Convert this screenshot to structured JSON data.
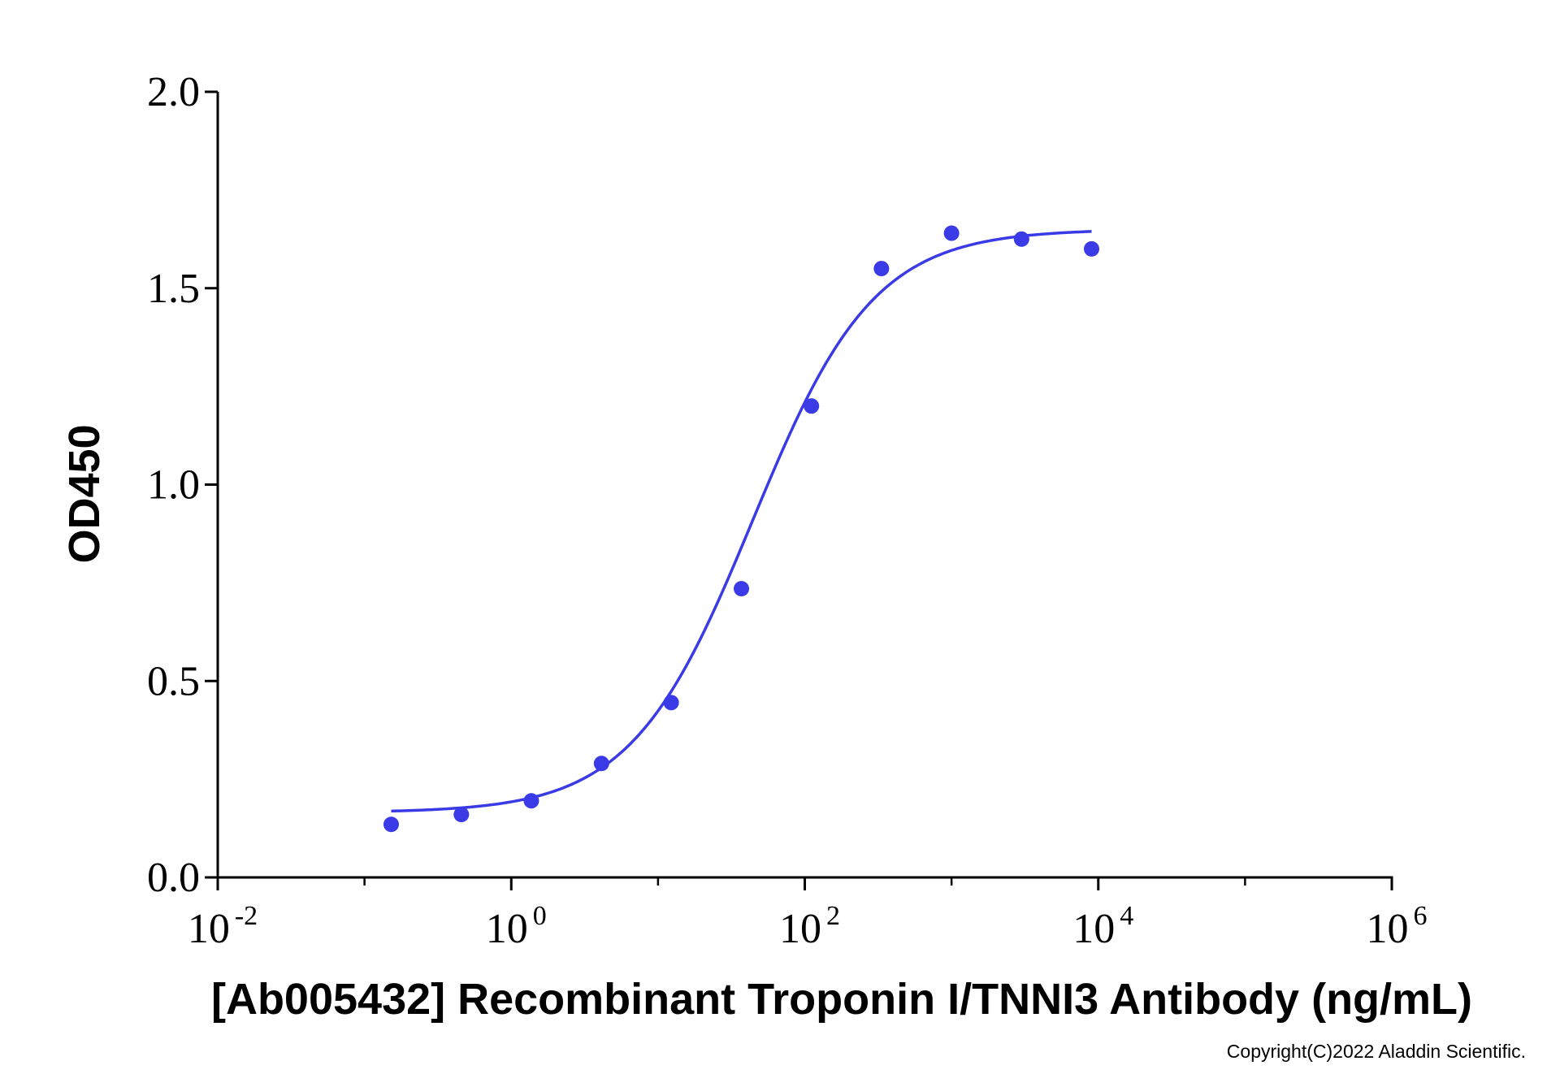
{
  "chart_data": {
    "type": "scatter",
    "xlabel": "[Ab005432] Recombinant Troponin I/TNNI3 Antibody (ng/mL)",
    "ylabel": "OD450",
    "xscale": "log",
    "xlim": [
      0.01,
      1000000
    ],
    "ylim": [
      0.0,
      2.0
    ],
    "grid": false,
    "legend": "none",
    "x_ticks": [
      {
        "base": "10",
        "exp": "-2"
      },
      {
        "base": "10",
        "exp": "0"
      },
      {
        "base": "10",
        "exp": "2"
      },
      {
        "base": "10",
        "exp": "4"
      },
      {
        "base": "10",
        "exp": "6"
      }
    ],
    "y_ticks": [
      "0.0",
      "0.5",
      "1.0",
      "1.5",
      "2.0"
    ],
    "series": [
      {
        "x": [
          0.152,
          0.457,
          1.37,
          4.12,
          12.3,
          37.0,
          111,
          333,
          1000,
          3000,
          9000
        ],
        "y": [
          0.135,
          0.16,
          0.195,
          0.29,
          0.445,
          0.735,
          1.2,
          1.55,
          1.64,
          1.625,
          1.6
        ]
      }
    ],
    "fit_curve": {
      "model": "4PL",
      "bottom": 0.165,
      "top": 1.65,
      "ec50": 44,
      "hill": 1.05,
      "x_range": [
        0.152,
        9000
      ]
    },
    "color": "#3a3ae6"
  },
  "copyright": "Copyright(C)2022 Aladdin Scientific."
}
